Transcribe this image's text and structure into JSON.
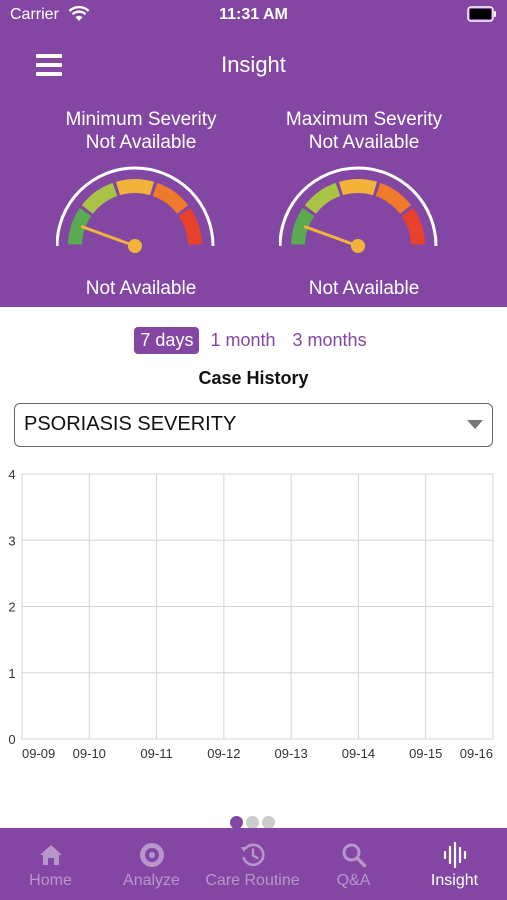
{
  "status_bar": {
    "carrier": "Carrier",
    "time": "11:31 AM"
  },
  "header": {
    "title": "Insight"
  },
  "gauges": [
    {
      "title": "Minimum Severity",
      "subtitle": "Not Available",
      "value_label": "Not Available"
    },
    {
      "title": "Maximum Severity",
      "subtitle": "Not Available",
      "value_label": "Not Available"
    }
  ],
  "gauge_colors": [
    "#5aab4f",
    "#a9c445",
    "#f2b33a",
    "#f07a2b",
    "#e8412c"
  ],
  "range_tabs": [
    {
      "label": "7 days",
      "active": true
    },
    {
      "label": "1 month",
      "active": false
    },
    {
      "label": "3 months",
      "active": false
    }
  ],
  "case_history": {
    "title": "Case History"
  },
  "dropdown": {
    "value": "PSORIASIS SEVERITY"
  },
  "chart_data": {
    "type": "line",
    "categories": [
      "09-09",
      "09-10",
      "09-11",
      "09-12",
      "09-13",
      "09-14",
      "09-15",
      "09-16"
    ],
    "series": [],
    "y_ticks": [
      "0",
      "1",
      "2",
      "3",
      "4"
    ],
    "ylim": [
      0,
      4
    ],
    "grid": true
  },
  "pager": {
    "count": 3,
    "active": 0
  },
  "tabbar": {
    "items": [
      {
        "label": "Home",
        "icon": "home-icon"
      },
      {
        "label": "Analyze",
        "icon": "analyze-icon"
      },
      {
        "label": "Care Routine",
        "icon": "history-icon"
      },
      {
        "label": "Q&A",
        "icon": "search-icon"
      },
      {
        "label": "Insight",
        "icon": "waveform-icon",
        "active": true
      }
    ]
  },
  "colors": {
    "brand": "#8347a3",
    "tab_inactive": "#b896cc",
    "grid": "#d4d4d4"
  }
}
